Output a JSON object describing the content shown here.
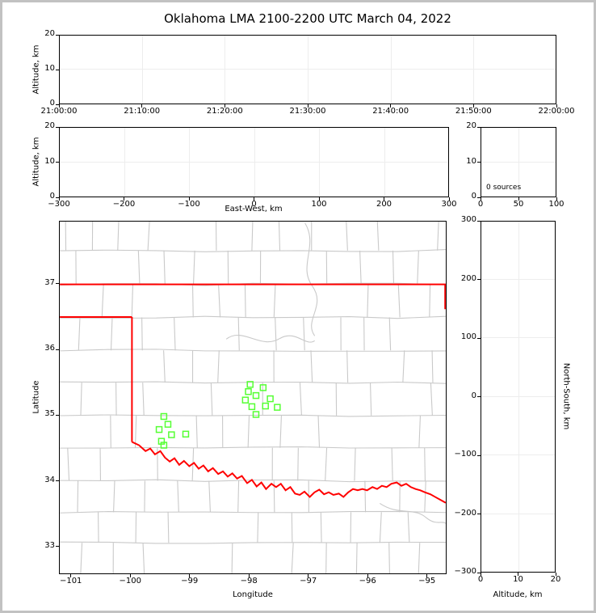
{
  "title": "Oklahoma LMA 2100-2200 UTC March 04, 2022",
  "colors": {
    "state_border": "#ff0000",
    "county_lines": "#c9c9c9",
    "source_marker": "#55ff33",
    "gridline": "#ededed"
  },
  "chart_data": {
    "type": "scatter",
    "title": "Oklahoma LMA 2100-2200 UTC March 04, 2022",
    "description": "Lightning Mapping Array multi-panel plot: time-height, east-west height, source-count histogram, plan-view county map with VHF source scatter, and north-south height panel",
    "panels": [
      {
        "id": "time_height",
        "ylabel": "Altitude, km",
        "y_range": [
          0,
          20
        ],
        "y_ticks": [
          {
            "v": 0,
            "label": "0"
          },
          {
            "v": 10,
            "label": "10"
          },
          {
            "v": 20,
            "label": "20"
          }
        ],
        "x_range": [
          0,
          3600
        ],
        "x_ticks": [
          {
            "v": 0,
            "label": "21:00:00"
          },
          {
            "v": 600,
            "label": "21:10:00"
          },
          {
            "v": 1200,
            "label": "21:20:00"
          },
          {
            "v": 1800,
            "label": "21:30:00"
          },
          {
            "v": 2400,
            "label": "21:40:00"
          },
          {
            "v": 3000,
            "label": "21:50:00"
          },
          {
            "v": 3600,
            "label": "22:00:00"
          }
        ],
        "grid": true,
        "points": []
      },
      {
        "id": "ew_height",
        "xlabel": "East-West, km",
        "ylabel": "Altitude, km",
        "x_range": [
          -300,
          300
        ],
        "x_ticks": [
          {
            "v": -300,
            "label": "−300"
          },
          {
            "v": -200,
            "label": "−200"
          },
          {
            "v": -100,
            "label": "−100"
          },
          {
            "v": 0,
            "label": "0"
          },
          {
            "v": 100,
            "label": "100"
          },
          {
            "v": 200,
            "label": "200"
          },
          {
            "v": 300,
            "label": "300"
          }
        ],
        "y_range": [
          0,
          20
        ],
        "y_ticks": [
          {
            "v": 0,
            "label": "0"
          },
          {
            "v": 10,
            "label": "10"
          },
          {
            "v": 20,
            "label": "20"
          }
        ],
        "grid": true,
        "points": []
      },
      {
        "id": "alt_histogram",
        "annotation": "0 sources",
        "x_range": [
          0,
          100
        ],
        "x_ticks": [
          {
            "v": 0,
            "label": "0"
          },
          {
            "v": 50,
            "label": "50"
          },
          {
            "v": 100,
            "label": "100"
          }
        ],
        "y_range": [
          0,
          20
        ],
        "y_ticks": [
          {
            "v": 0,
            "label": "0"
          },
          {
            "v": 10,
            "label": "10"
          },
          {
            "v": 20,
            "label": "20"
          }
        ],
        "grid": true,
        "points": []
      },
      {
        "id": "plan_map",
        "xlabel": "Longitude",
        "ylabel": "Latitude",
        "x_range": [
          -101.2,
          -94.67
        ],
        "x_ticks": [
          {
            "v": -101,
            "label": "−101"
          },
          {
            "v": -100,
            "label": "−100"
          },
          {
            "v": -99,
            "label": "−99"
          },
          {
            "v": -98,
            "label": "−98"
          },
          {
            "v": -97,
            "label": "−97"
          },
          {
            "v": -96,
            "label": "−96"
          },
          {
            "v": -95,
            "label": "−95"
          }
        ],
        "y_range": [
          32.58,
          37.96
        ],
        "y_ticks": [
          {
            "v": 33,
            "label": "33"
          },
          {
            "v": 34,
            "label": "34"
          },
          {
            "v": 35,
            "label": "35"
          },
          {
            "v": 36,
            "label": "36"
          },
          {
            "v": 37,
            "label": "37"
          }
        ],
        "grid": false,
        "series": [
          {
            "name": "vhf_sources",
            "marker": "open-square",
            "color": "#55ff33",
            "points_lon_lat": [
              [
                -97.98,
                35.47
              ],
              [
                -97.76,
                35.42
              ],
              [
                -98.01,
                35.36
              ],
              [
                -97.88,
                35.3
              ],
              [
                -98.06,
                35.23
              ],
              [
                -97.64,
                35.25
              ],
              [
                -97.95,
                35.13
              ],
              [
                -97.72,
                35.14
              ],
              [
                -97.52,
                35.12
              ],
              [
                -97.88,
                35.01
              ],
              [
                -99.44,
                34.98
              ],
              [
                -99.37,
                34.86
              ],
              [
                -99.52,
                34.78
              ],
              [
                -99.31,
                34.7
              ],
              [
                -99.07,
                34.71
              ],
              [
                -99.48,
                34.6
              ],
              [
                -99.44,
                34.54
              ]
            ]
          }
        ],
        "state_border_lonlat": [
          [
            [
              -101.2,
              37.0
            ],
            [
              -94.67,
              37.0
            ]
          ],
          [
            [
              -101.2,
              36.5
            ],
            [
              -99.98,
              36.5
            ]
          ],
          [
            [
              -99.98,
              36.5
            ],
            [
              -99.98,
              34.59
            ]
          ],
          [
            [
              -94.68,
              37.0
            ],
            [
              -94.68,
              36.62
            ]
          ],
          [
            [
              -99.98,
              34.59
            ],
            [
              -99.86,
              34.54
            ],
            [
              -99.75,
              34.45
            ],
            [
              -99.67,
              34.49
            ],
            [
              -99.59,
              34.4
            ],
            [
              -99.5,
              34.45
            ],
            [
              -99.42,
              34.35
            ],
            [
              -99.34,
              34.29
            ],
            [
              -99.26,
              34.34
            ],
            [
              -99.18,
              34.24
            ],
            [
              -99.1,
              34.3
            ],
            [
              -99.01,
              34.22
            ],
            [
              -98.93,
              34.27
            ],
            [
              -98.85,
              34.18
            ],
            [
              -98.77,
              34.23
            ],
            [
              -98.69,
              34.14
            ],
            [
              -98.61,
              34.19
            ],
            [
              -98.52,
              34.1
            ],
            [
              -98.44,
              34.14
            ],
            [
              -98.36,
              34.06
            ],
            [
              -98.28,
              34.11
            ],
            [
              -98.2,
              34.03
            ],
            [
              -98.12,
              34.07
            ],
            [
              -98.03,
              33.96
            ],
            [
              -97.95,
              34.01
            ],
            [
              -97.87,
              33.91
            ],
            [
              -97.79,
              33.97
            ],
            [
              -97.71,
              33.87
            ],
            [
              -97.62,
              33.95
            ],
            [
              -97.54,
              33.9
            ],
            [
              -97.46,
              33.95
            ],
            [
              -97.38,
              33.85
            ],
            [
              -97.3,
              33.9
            ],
            [
              -97.22,
              33.8
            ],
            [
              -97.14,
              33.78
            ],
            [
              -97.06,
              33.83
            ],
            [
              -96.97,
              33.75
            ],
            [
              -96.89,
              33.82
            ],
            [
              -96.81,
              33.86
            ],
            [
              -96.73,
              33.79
            ],
            [
              -96.65,
              33.82
            ],
            [
              -96.57,
              33.78
            ],
            [
              -96.48,
              33.8
            ],
            [
              -96.4,
              33.75
            ],
            [
              -96.32,
              33.82
            ],
            [
              -96.24,
              33.87
            ],
            [
              -96.16,
              33.85
            ],
            [
              -96.08,
              33.87
            ],
            [
              -96.0,
              33.85
            ],
            [
              -95.91,
              33.9
            ],
            [
              -95.83,
              33.87
            ],
            [
              -95.75,
              33.92
            ],
            [
              -95.67,
              33.9
            ],
            [
              -95.59,
              33.95
            ],
            [
              -95.5,
              33.97
            ],
            [
              -95.42,
              33.92
            ],
            [
              -95.34,
              33.95
            ],
            [
              -95.26,
              33.9
            ],
            [
              -95.18,
              33.87
            ],
            [
              -95.1,
              33.85
            ],
            [
              -95.02,
              33.82
            ],
            [
              -94.93,
              33.79
            ],
            [
              -94.85,
              33.75
            ],
            [
              -94.77,
              33.71
            ],
            [
              -94.67,
              33.66
            ]
          ]
        ]
      },
      {
        "id": "height_ns",
        "xlabel": "Altitude, km",
        "ylabel_right": "North-South, km",
        "x_range": [
          0,
          20
        ],
        "x_ticks": [
          {
            "v": 0,
            "label": "0"
          },
          {
            "v": 10,
            "label": "10"
          },
          {
            "v": 20,
            "label": "20"
          }
        ],
        "y_range": [
          -300,
          300
        ],
        "y_ticks": [
          {
            "v": -300,
            "label": "−300"
          },
          {
            "v": -200,
            "label": "−200"
          },
          {
            "v": -100,
            "label": "−100"
          },
          {
            "v": 0,
            "label": "0"
          },
          {
            "v": 100,
            "label": "100"
          },
          {
            "v": 200,
            "label": "200"
          },
          {
            "v": 300,
            "label": "300"
          }
        ],
        "grid": true,
        "points": []
      }
    ]
  }
}
